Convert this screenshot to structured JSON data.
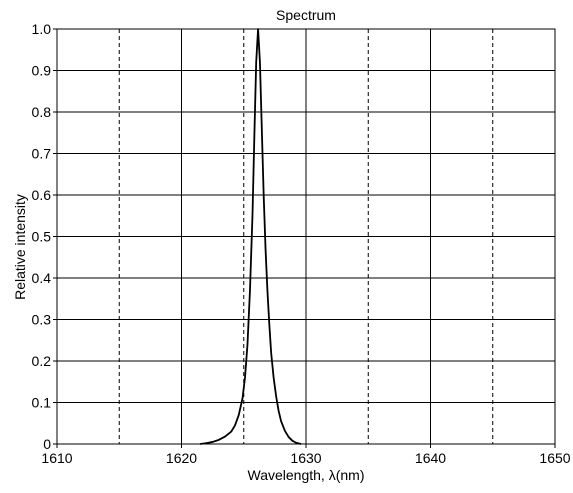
{
  "chart_data": {
    "type": "line",
    "title": "Spectrum",
    "xlabel": "Wavelength,  λ(nm)",
    "ylabel": "Relative intensity",
    "xlim": [
      1610,
      1650
    ],
    "ylim": [
      0,
      1.0
    ],
    "x_ticks": [
      1610,
      1620,
      1630,
      1640,
      1650
    ],
    "x_tick_labels": [
      "1610",
      "1620",
      "1630",
      "1640",
      "1650"
    ],
    "y_ticks": [
      0,
      0.1,
      0.2,
      0.3,
      0.4,
      0.5,
      0.6,
      0.7,
      0.8,
      0.9,
      1.0
    ],
    "y_tick_labels": [
      "0",
      "0.1",
      "0.2",
      "0.3",
      "0.4",
      "0.5",
      "0.6",
      "0.7",
      "0.8",
      "0.9",
      "1.0"
    ],
    "x_major_grid": [
      1620,
      1630,
      1640
    ],
    "x_dashed_grid": [
      1615,
      1625,
      1635,
      1645
    ],
    "y_grid": [
      0.1,
      0.2,
      0.3,
      0.4,
      0.5,
      0.6,
      0.7,
      0.8,
      0.9
    ],
    "grid": true,
    "legend": "none",
    "line_color": "#000000",
    "series": [
      {
        "x": [
          1621.5,
          1622.0,
          1622.5,
          1623.0,
          1623.5,
          1624.0,
          1624.3,
          1624.6,
          1624.9,
          1625.1,
          1625.3,
          1625.5,
          1625.7,
          1625.85,
          1626.0,
          1626.15,
          1626.3,
          1626.45,
          1626.6,
          1626.75,
          1626.9,
          1627.05,
          1627.2,
          1627.4,
          1627.6,
          1627.8,
          1628.0,
          1628.3,
          1628.6,
          1628.9,
          1629.2,
          1629.6
        ],
        "y": [
          0.0,
          0.002,
          0.005,
          0.01,
          0.018,
          0.03,
          0.045,
          0.07,
          0.11,
          0.16,
          0.24,
          0.37,
          0.55,
          0.74,
          0.92,
          1.0,
          0.92,
          0.76,
          0.6,
          0.47,
          0.37,
          0.29,
          0.22,
          0.16,
          0.115,
          0.08,
          0.055,
          0.032,
          0.017,
          0.008,
          0.003,
          0.0
        ]
      }
    ]
  }
}
